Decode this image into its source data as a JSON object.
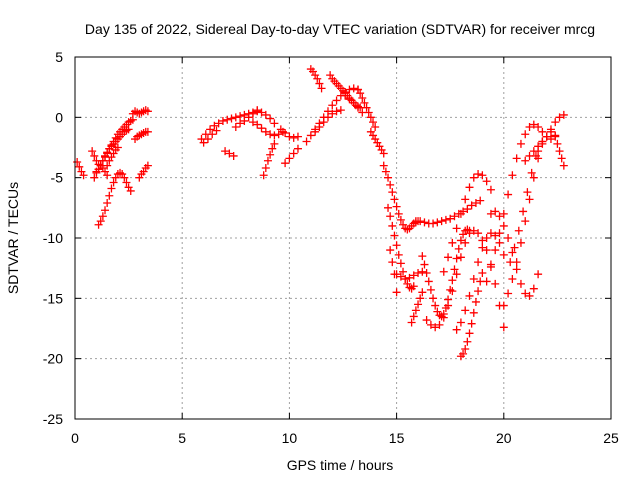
{
  "chart_data": {
    "type": "scatter",
    "title": "Day 135 of 2022, Sidereal Day-to-day VTEC variation (SDTVAR) for receiver mrcg",
    "xlabel": "GPS time / hours",
    "ylabel": "SDTVAR / TECUs",
    "xlim": [
      0,
      25
    ],
    "ylim": [
      -25,
      5
    ],
    "xticks": [
      "0",
      "5",
      "10",
      "15",
      "20",
      "25"
    ],
    "yticks": [
      "5",
      "0",
      "-5",
      "-10",
      "-15",
      "-20",
      "-25"
    ],
    "grid": true,
    "legend": "none",
    "marker": "plus",
    "color": "#ff0000",
    "series": [
      {
        "x": [
          0.1,
          0.2,
          0.3,
          0.4
        ],
        "y": [
          -3.7,
          -4.1,
          -4.5,
          -4.8
        ]
      },
      {
        "x": [
          0.8,
          0.9,
          1.0,
          1.1,
          1.2,
          1.3,
          1.4,
          1.5
        ],
        "y": [
          -2.8,
          -3.2,
          -3.6,
          -3.9,
          -4.0,
          -4.2,
          -4.5,
          -4.8
        ]
      },
      {
        "x": [
          0.9,
          1.0,
          1.1,
          1.2,
          1.3,
          1.4,
          1.5,
          1.6,
          1.7,
          1.8,
          1.9,
          2.0,
          2.1,
          2.2,
          2.3,
          2.4,
          2.5,
          2.6,
          2.7
        ],
        "y": [
          -5.0,
          -4.6,
          -4.3,
          -4.0,
          -3.6,
          -3.3,
          -3.0,
          -2.6,
          -2.3,
          -2.0,
          -1.7,
          -1.4,
          -1.2,
          -1.0,
          -0.8,
          -0.6,
          -0.4,
          -0.3,
          -0.2
        ]
      },
      {
        "x": [
          1.0,
          1.1,
          1.2,
          1.3,
          1.4,
          1.5,
          1.6,
          1.7,
          1.8,
          1.9,
          2.0,
          2.1,
          2.2,
          2.3,
          2.4,
          2.5
        ],
        "y": [
          -4.5,
          -4.3,
          -4.0,
          -3.6,
          -3.2,
          -2.9,
          -2.6,
          -2.4,
          -2.2,
          -2.0,
          -1.8,
          -1.6,
          -1.4,
          -1.2,
          -1.1,
          -1.0
        ]
      },
      {
        "x": [
          1.1,
          1.2,
          1.3,
          1.4,
          1.5,
          1.6,
          1.7,
          1.8,
          1.9,
          2.0,
          2.1,
          2.2,
          2.3,
          2.4,
          2.5,
          2.6
        ],
        "y": [
          -8.9,
          -8.6,
          -8.2,
          -7.7,
          -7.1,
          -6.5,
          -5.9,
          -5.4,
          -5.0,
          -4.7,
          -4.6,
          -4.7,
          -5.0,
          -5.4,
          -5.8,
          -6.1
        ]
      },
      {
        "x": [
          1.5,
          1.6,
          1.7,
          1.8,
          1.9,
          2.0
        ],
        "y": [
          -4.0,
          -3.6,
          -3.3,
          -3.0,
          -2.7,
          -2.5
        ]
      },
      {
        "x": [
          2.7,
          2.8,
          2.9,
          3.0,
          3.1,
          3.2,
          3.3,
          3.4
        ],
        "y": [
          0.3,
          0.5,
          0.4,
          0.3,
          0.4,
          0.5,
          0.6,
          0.5
        ]
      },
      {
        "x": [
          2.8,
          2.9,
          3.0,
          3.1,
          3.2,
          3.3,
          3.4
        ],
        "y": [
          -1.8,
          -1.6,
          -1.5,
          -1.4,
          -1.3,
          -1.2,
          -1.2
        ]
      },
      {
        "x": [
          3.0,
          3.1,
          3.2,
          3.3,
          3.4
        ],
        "y": [
          -5.0,
          -4.7,
          -4.5,
          -4.2,
          -4.0
        ]
      },
      {
        "x": [
          5.9,
          6.1,
          6.3,
          6.5,
          6.7,
          6.9,
          7.1,
          7.3,
          7.5,
          7.7,
          7.9,
          8.1,
          8.3,
          8.5,
          8.7,
          8.9,
          9.1,
          9.3
        ],
        "y": [
          -1.8,
          -1.4,
          -1.0,
          -0.7,
          -0.5,
          -0.3,
          -0.2,
          -0.1,
          0.0,
          0.1,
          0.2,
          0.3,
          0.4,
          0.5,
          0.4,
          0.2,
          -0.1,
          -0.5
        ]
      },
      {
        "x": [
          6.0,
          6.2,
          6.4,
          6.6
        ],
        "y": [
          -2.1,
          -1.8,
          -1.4,
          -1.1
        ]
      },
      {
        "x": [
          7.0,
          7.2,
          7.4
        ],
        "y": [
          -2.8,
          -3.0,
          -3.2
        ]
      },
      {
        "x": [
          7.5,
          7.7,
          7.9,
          8.1,
          8.3,
          8.5
        ],
        "y": [
          -0.8,
          -0.5,
          -0.3,
          0.0,
          0.3,
          0.6
        ]
      },
      {
        "x": [
          8.3,
          8.5,
          8.7,
          8.9,
          9.1,
          9.3,
          9.5,
          9.7
        ],
        "y": [
          -0.4,
          -0.6,
          -0.9,
          -1.2,
          -1.4,
          -1.5,
          -1.4,
          -1.2
        ]
      },
      {
        "x": [
          8.8,
          8.9,
          9.0,
          9.1,
          9.2,
          9.3
        ],
        "y": [
          -4.8,
          -4.2,
          -3.6,
          -3.1,
          -2.6,
          -2.2
        ]
      },
      {
        "x": [
          9.6,
          9.8,
          10.0,
          10.2,
          10.4
        ],
        "y": [
          -1.0,
          -1.3,
          -1.6,
          -1.7,
          -1.6
        ]
      },
      {
        "x": [
          9.8,
          10.0,
          10.2,
          10.4
        ],
        "y": [
          -3.8,
          -3.4,
          -3.0,
          -2.6
        ]
      },
      {
        "x": [
          10.8,
          11.0,
          11.2,
          11.4,
          11.6,
          11.8,
          12.0,
          12.2,
          12.4,
          12.6,
          12.8,
          13.0,
          13.2
        ],
        "y": [
          -2.0,
          -1.5,
          -1.0,
          -0.5,
          0.0,
          0.5,
          1.0,
          1.4,
          1.8,
          2.1,
          2.3,
          2.4,
          2.3
        ]
      },
      {
        "x": [
          11.0,
          11.1,
          11.2,
          11.3,
          11.4,
          11.5
        ],
        "y": [
          4.0,
          3.8,
          3.5,
          3.2,
          2.8,
          2.4
        ]
      },
      {
        "x": [
          11.2,
          11.4,
          11.6,
          11.8,
          12.0,
          12.2,
          12.4
        ],
        "y": [
          -1.2,
          -0.8,
          -0.4,
          0.0,
          0.3,
          0.5,
          0.6
        ]
      },
      {
        "x": [
          11.9,
          12.0,
          12.1,
          12.2,
          12.3,
          12.4,
          12.5,
          12.6,
          12.7,
          12.8,
          12.9,
          13.0,
          13.1,
          13.2,
          13.3
        ],
        "y": [
          3.5,
          3.2,
          3.0,
          2.8,
          2.6,
          2.4,
          2.2,
          2.0,
          1.8,
          1.6,
          1.4,
          1.2,
          1.0,
          0.9,
          0.8
        ]
      },
      {
        "x": [
          12.6,
          12.8,
          13.0,
          13.2,
          13.4
        ],
        "y": [
          1.8,
          1.5,
          1.2,
          0.8,
          0.4
        ]
      },
      {
        "x": [
          13.2,
          13.3,
          13.4,
          13.5,
          13.6,
          13.7,
          13.8,
          13.9,
          14.0
        ],
        "y": [
          2.3,
          2.0,
          1.6,
          1.2,
          0.8,
          0.4,
          0.0,
          -0.4,
          -0.8
        ]
      },
      {
        "x": [
          13.8,
          13.9,
          14.0,
          14.1,
          14.2,
          14.3,
          14.4
        ],
        "y": [
          -1.2,
          -1.5,
          -1.8,
          -2.1,
          -2.4,
          -2.7,
          -3.0
        ]
      },
      {
        "x": [
          14.4,
          14.5,
          14.6,
          14.7,
          14.8,
          14.9,
          15.0,
          15.1,
          15.2,
          15.3,
          15.4,
          15.5,
          15.6,
          15.7,
          15.8,
          15.9,
          16.0
        ],
        "y": [
          -4.0,
          -4.5,
          -5.0,
          -5.6,
          -6.2,
          -6.8,
          -7.4,
          -8.0,
          -8.5,
          -8.9,
          -9.2,
          -9.3,
          -9.2,
          -9.0,
          -8.8,
          -8.7,
          -8.6
        ]
      },
      {
        "x": [
          14.6,
          14.7,
          14.8,
          14.9,
          15.0,
          15.1,
          15.2,
          15.3,
          15.4,
          15.5,
          15.6,
          15.7,
          15.8
        ],
        "y": [
          -7.5,
          -8.2,
          -9.0,
          -9.8,
          -10.6,
          -11.4,
          -12.1,
          -12.8,
          -13.4,
          -13.8,
          -14.1,
          -14.2,
          -14.0
        ]
      },
      {
        "x": [
          14.7,
          14.8,
          14.9,
          15.0
        ],
        "y": [
          -11.0,
          -12.0,
          -13.0,
          -14.5
        ]
      },
      {
        "x": [
          15.0,
          15.2,
          15.4,
          15.6,
          15.8,
          16.0,
          16.2
        ],
        "y": [
          -13.0,
          -13.2,
          -13.4,
          -13.3,
          -13.1,
          -12.9,
          -12.8
        ]
      },
      {
        "x": [
          15.9,
          16.1,
          16.3,
          16.5,
          16.7,
          16.9,
          17.1,
          17.3,
          17.5,
          17.7,
          17.9,
          18.1,
          18.3,
          18.5,
          18.7,
          18.9
        ],
        "y": [
          -8.6,
          -8.6,
          -8.7,
          -8.8,
          -8.8,
          -8.7,
          -8.6,
          -8.5,
          -8.4,
          -8.2,
          -8.0,
          -7.8,
          -7.6,
          -7.3,
          -7.1,
          -6.9
        ]
      },
      {
        "x": [
          15.7,
          15.8,
          15.9,
          16.0,
          16.1,
          16.2
        ],
        "y": [
          -17.0,
          -16.5,
          -16.0,
          -15.5,
          -15.0,
          -14.5
        ]
      },
      {
        "x": [
          16.2,
          16.3,
          16.4,
          16.5,
          16.6,
          16.7,
          16.8,
          16.9,
          17.0,
          17.1,
          17.2,
          17.3,
          17.4,
          17.5,
          17.6,
          17.7,
          17.8,
          17.9,
          18.0,
          18.1,
          18.2,
          18.3,
          18.4
        ],
        "y": [
          -11.5,
          -12.2,
          -12.9,
          -13.6,
          -14.3,
          -15.0,
          -15.6,
          -16.1,
          -16.4,
          -16.5,
          -16.3,
          -15.8,
          -15.1,
          -14.3,
          -13.5,
          -12.6,
          -11.7,
          -10.9,
          -10.2,
          -9.7,
          -9.4,
          -9.3,
          -9.4
        ]
      },
      {
        "x": [
          16.4,
          16.6,
          16.8,
          17.0,
          17.2,
          17.4,
          17.6,
          17.8,
          18.0,
          18.2,
          18.4,
          18.6,
          18.8,
          19.0,
          19.2,
          19.4,
          19.6,
          19.8,
          20.0
        ],
        "y": [
          -16.8,
          -17.2,
          -17.4,
          -17.2,
          -16.6,
          -15.6,
          -14.4,
          -13.0,
          -11.6,
          -10.4,
          -9.6,
          -9.4,
          -9.6,
          -10.2,
          -11.0,
          -12.2,
          -13.8,
          -15.6,
          -17.4
        ]
      },
      {
        "x": [
          17.2,
          17.4,
          17.6,
          17.8,
          18.0,
          18.2,
          18.4,
          18.6,
          18.8,
          19.0,
          19.2,
          19.4
        ],
        "y": [
          -12.8,
          -11.6,
          -10.4,
          -9.2,
          -8.0,
          -6.8,
          -5.8,
          -5.0,
          -4.7,
          -4.8,
          -5.3,
          -6.0
        ]
      },
      {
        "x": [
          17.8,
          18.0,
          18.2,
          18.4,
          18.6,
          18.8,
          19.0,
          19.2,
          19.4,
          19.6,
          19.8,
          20.0
        ],
        "y": [
          -17.6,
          -17.0,
          -16.0,
          -14.8,
          -13.4,
          -12.0,
          -10.8,
          -10.0,
          -9.6,
          -9.8,
          -10.4,
          -11.4
        ]
      },
      {
        "x": [
          18.0,
          18.1,
          18.2,
          18.3,
          18.4,
          18.5,
          18.6,
          18.7,
          18.8,
          18.9,
          19.0
        ],
        "y": [
          -19.8,
          -19.6,
          -19.2,
          -18.6,
          -17.9,
          -17.1,
          -16.2,
          -15.3,
          -14.4,
          -13.6,
          -12.9
        ]
      },
      {
        "x": [
          19.2,
          19.4,
          19.6,
          19.8,
          20.0,
          20.2,
          20.4,
          20.6,
          20.8,
          21.0,
          21.2,
          21.4,
          21.6,
          21.8,
          22.0,
          22.2,
          22.4
        ],
        "y": [
          -13.6,
          -12.4,
          -11.0,
          -9.6,
          -8.0,
          -6.4,
          -4.8,
          -3.4,
          -2.2,
          -1.4,
          -0.8,
          -0.6,
          -0.8,
          -1.2,
          -1.6,
          -1.8,
          -1.6
        ]
      },
      {
        "x": [
          19.4,
          19.6,
          19.8,
          20.0,
          20.2,
          20.4,
          20.6,
          20.8,
          21.0,
          21.2,
          21.4,
          21.6
        ],
        "y": [
          -8.0,
          -7.8,
          -8.2,
          -9.0,
          -10.0,
          -11.2,
          -12.6,
          -13.8,
          -14.6,
          -14.8,
          -14.2,
          -13.0
        ]
      },
      {
        "x": [
          20.0,
          20.2,
          20.4,
          20.6,
          20.8,
          21.0,
          21.2,
          21.4,
          21.6,
          21.8
        ],
        "y": [
          -15.6,
          -14.6,
          -13.4,
          -12.0,
          -10.4,
          -8.6,
          -6.8,
          -5.0,
          -3.4,
          -2.0
        ]
      },
      {
        "x": [
          20.3,
          20.5,
          20.7,
          20.9,
          21.1,
          21.3,
          21.5
        ],
        "y": [
          -12.0,
          -10.8,
          -9.4,
          -7.8,
          -6.2,
          -4.6,
          -3.2
        ]
      },
      {
        "x": [
          21.0,
          21.2,
          21.4,
          21.6,
          21.8,
          22.0,
          22.2
        ],
        "y": [
          -3.6,
          -3.2,
          -2.8,
          -2.4,
          -2.0,
          -1.6,
          -1.2
        ]
      },
      {
        "x": [
          21.6,
          21.8,
          22.0,
          22.2,
          22.4,
          22.6,
          22.8
        ],
        "y": [
          -2.8,
          -2.2,
          -1.6,
          -1.0,
          -0.4,
          0.0,
          0.2
        ]
      },
      {
        "x": [
          22.4,
          22.5,
          22.6,
          22.7,
          22.8
        ],
        "y": [
          -1.5,
          -2.2,
          -2.8,
          -3.4,
          -4.0
        ]
      }
    ]
  }
}
